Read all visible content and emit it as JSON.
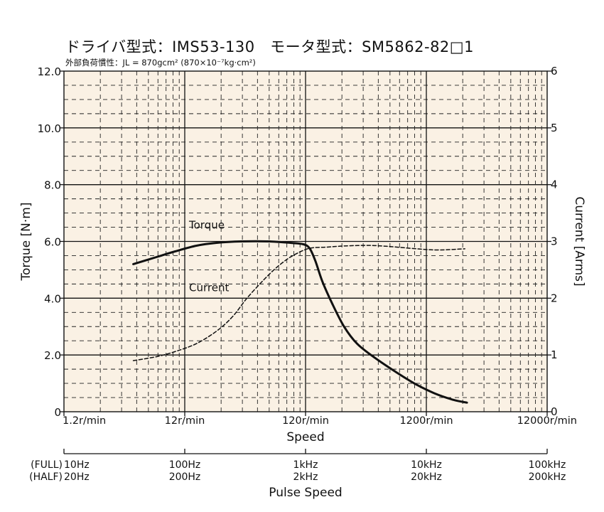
{
  "chart_data": {
    "type": "line",
    "title": "ドライバ型式：IMS53-130　モータ型式：SM5862-82□1",
    "subtitle": "外部負荷慣性：JL = 870gcm² (870×10⁻⁷kg·cm²)",
    "xlabel": "Speed",
    "ylabel_left": "Torque  [N·m]",
    "ylabel_right": "Current  [Arms]",
    "x_scale": "log",
    "xlim": [
      1.2,
      12000
    ],
    "ylim_left": [
      0,
      12
    ],
    "ylim_right": [
      0,
      6
    ],
    "grid": true,
    "x_tick_labels": [
      "1.2r/min",
      "12r/min",
      "120r/min",
      "1200r/min",
      "12000r/min"
    ],
    "y_left_tick_labels": [
      "0",
      "2.0",
      "4.0",
      "6.0",
      "8.0",
      "10.0",
      "12.0"
    ],
    "y_right_tick_labels": [
      "0",
      "1",
      "2",
      "3",
      "4",
      "5",
      "6"
    ],
    "series": [
      {
        "name": "Torque",
        "axis": "left",
        "style": "solid",
        "color": "#111111",
        "x": [
          4.5,
          7,
          10,
          15,
          22,
          35,
          60,
          90,
          115,
          130,
          145,
          165,
          200,
          250,
          320,
          450,
          700,
          1000,
          1400,
          2000,
          2600
        ],
        "y": [
          5.2,
          5.45,
          5.65,
          5.85,
          5.95,
          6.0,
          6.0,
          5.95,
          5.9,
          5.75,
          5.3,
          4.6,
          3.8,
          3.0,
          2.4,
          1.9,
          1.35,
          0.95,
          0.65,
          0.42,
          0.32
        ]
      },
      {
        "name": "Current",
        "axis": "right",
        "style": "dashed",
        "color": "#111111",
        "x": [
          4.5,
          7,
          10,
          15,
          22,
          30,
          40,
          60,
          80,
          100,
          130,
          180,
          250,
          400,
          600,
          1000,
          1500,
          2500
        ],
        "y": [
          0.9,
          0.97,
          1.06,
          1.2,
          1.42,
          1.68,
          2.02,
          2.42,
          2.65,
          2.78,
          2.88,
          2.9,
          2.92,
          2.93,
          2.91,
          2.87,
          2.85,
          2.87
        ]
      }
    ],
    "annotations": [
      "Torque",
      "Current"
    ],
    "pulse_axis": {
      "label": "Pulse Speed",
      "row_labels": [
        "(FULL)",
        "(HALF)"
      ],
      "full": [
        "10Hz",
        "100Hz",
        "1kHz",
        "10kHz",
        "100kHz"
      ],
      "half": [
        "20Hz",
        "200Hz",
        "2kHz",
        "20kHz",
        "200kHz"
      ]
    },
    "colors": {
      "plot_background": "#faf1e4",
      "line": "#111111"
    }
  }
}
